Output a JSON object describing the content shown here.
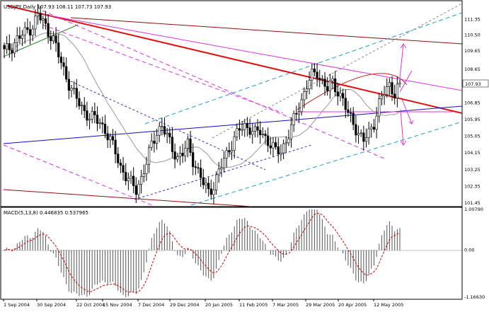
{
  "chart_data": [
    {
      "type": "candlestick",
      "title": "USDJPY,Daily",
      "ohlc_text": "107.93 108.11 107.73 107.93",
      "y_ticks": [
        "111.35",
        "110.50",
        "109.65",
        "108.65",
        "107.93",
        "106.85",
        "105.95",
        "105.05",
        "104.15",
        "103.25",
        "102.35",
        "101.45"
      ],
      "x_ticks": [
        "1 Sep 2004",
        "30 Sep 2004",
        "22 Oct 2004",
        "15 Nov 2004",
        "7 Dec 2004",
        "29 Dec 2004",
        "20 Jan 2005",
        "11 Feb 2005",
        "7 Mar 2005",
        "29 Mar 2005",
        "20 Apr 2005",
        "12 May 2005"
      ],
      "ylim": [
        101.45,
        112.2
      ],
      "last_price": 107.93,
      "close_path": [
        [
          0,
          109.6
        ],
        [
          3,
          109.9
        ],
        [
          5,
          110.3
        ],
        [
          8,
          110.6
        ],
        [
          11,
          111.0
        ],
        [
          13,
          111.6
        ],
        [
          15,
          111.2
        ],
        [
          17,
          110.7
        ],
        [
          19,
          110.3
        ],
        [
          21,
          109.4
        ],
        [
          23,
          108.6
        ],
        [
          25,
          107.9
        ],
        [
          27,
          107.3
        ],
        [
          29,
          106.8
        ],
        [
          31,
          106.4
        ],
        [
          33,
          106.1
        ],
        [
          35,
          106.0
        ],
        [
          37,
          105.8
        ],
        [
          39,
          105.4
        ],
        [
          41,
          104.8
        ],
        [
          43,
          104.2
        ],
        [
          45,
          103.4
        ],
        [
          47,
          102.9
        ],
        [
          49,
          102.5
        ],
        [
          51,
          102.2
        ],
        [
          53,
          102.8
        ],
        [
          55,
          103.6
        ],
        [
          57,
          104.6
        ],
        [
          59,
          105.3
        ],
        [
          61,
          105.6
        ],
        [
          63,
          105.0
        ],
        [
          65,
          104.4
        ],
        [
          67,
          103.9
        ],
        [
          69,
          104.1
        ],
        [
          71,
          104.6
        ],
        [
          73,
          103.8
        ],
        [
          75,
          103.1
        ],
        [
          77,
          102.5
        ],
        [
          79,
          102.1
        ],
        [
          81,
          102.4
        ],
        [
          83,
          103.1
        ],
        [
          85,
          103.8
        ],
        [
          87,
          104.4
        ],
        [
          89,
          104.9
        ],
        [
          91,
          105.4
        ],
        [
          93,
          105.6
        ],
        [
          95,
          105.5
        ],
        [
          97,
          105.2
        ],
        [
          99,
          105.3
        ],
        [
          101,
          105.0
        ],
        [
          103,
          104.6
        ],
        [
          105,
          104.2
        ],
        [
          107,
          104.3
        ],
        [
          109,
          104.8
        ],
        [
          111,
          105.5
        ],
        [
          113,
          106.3
        ],
        [
          115,
          107.0
        ],
        [
          117,
          107.8
        ],
        [
          119,
          108.3
        ],
        [
          121,
          108.5
        ],
        [
          123,
          108.0
        ],
        [
          125,
          107.6
        ],
        [
          127,
          107.9
        ],
        [
          129,
          107.5
        ],
        [
          131,
          107.0
        ],
        [
          133,
          106.2
        ],
        [
          135,
          105.8
        ],
        [
          137,
          105.2
        ],
        [
          139,
          104.8
        ],
        [
          141,
          105.2
        ],
        [
          143,
          105.8
        ],
        [
          145,
          106.8
        ],
        [
          147,
          107.4
        ],
        [
          149,
          107.8
        ],
        [
          151,
          107.4
        ],
        [
          153,
          107.93
        ]
      ],
      "n_bars": 154
    },
    {
      "type": "bar",
      "title": "MACD(5,13,8)",
      "values_text": "0.446835 0.537965",
      "y_ticks": [
        "1.00790",
        "0.00",
        "-1.16630"
      ],
      "ylim": [
        -1.1663,
        1.0079
      ]
    }
  ]
}
